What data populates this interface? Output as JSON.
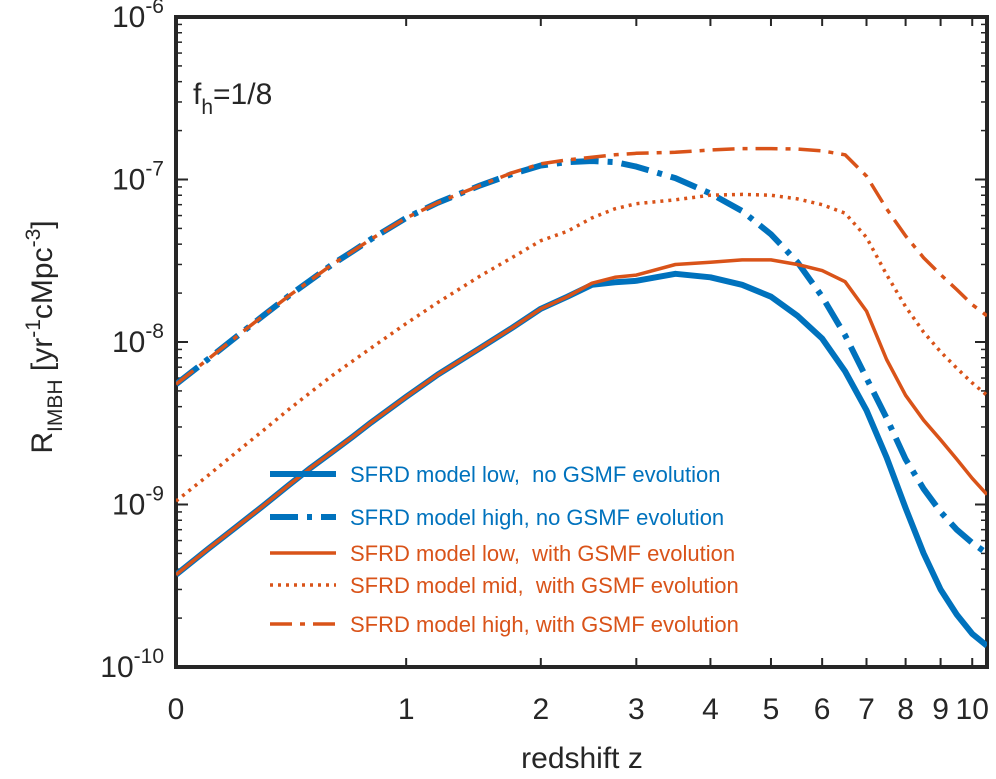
{
  "chart_data": {
    "type": "line",
    "title": "",
    "xlabel": "redshift z",
    "ylabel": "R_IMBH [yr^-1 cMpc^-3]",
    "xscale": "log(1+z)",
    "yscale": "log",
    "xlim": [
      0,
      10.5
    ],
    "ylim": [
      1e-10,
      1e-06
    ],
    "grid": false,
    "legend_position": "bottom-right",
    "annotation": {
      "base": "f",
      "sub": "h",
      "rest": "=1/8"
    },
    "ylabel_parts": {
      "base": "R",
      "sub": "IMBH",
      "open": " [yr",
      "exp1": "-1",
      "mid": "cMpc",
      "exp2": "-3",
      "close": "]"
    },
    "x_ticks": [
      {
        "value": 0,
        "label": "0"
      },
      {
        "value": 1,
        "label": "1"
      },
      {
        "value": 2,
        "label": "2"
      },
      {
        "value": 3,
        "label": "3"
      },
      {
        "value": 4,
        "label": "4"
      },
      {
        "value": 5,
        "label": "5"
      },
      {
        "value": 6,
        "label": "6"
      },
      {
        "value": 7,
        "label": "7"
      },
      {
        "value": 8,
        "label": "8"
      },
      {
        "value": 9,
        "label": "9"
      },
      {
        "value": 10,
        "label": "10"
      }
    ],
    "y_ticks": [
      {
        "value": 1e-10,
        "base": "10",
        "exp": "-10"
      },
      {
        "value": 1e-09,
        "base": "10",
        "exp": "-9"
      },
      {
        "value": 1e-08,
        "base": "10",
        "exp": "-8"
      },
      {
        "value": 1e-07,
        "base": "10",
        "exp": "-7"
      },
      {
        "value": 1e-06,
        "base": "10",
        "exp": "-6"
      }
    ],
    "series": [
      {
        "name": "SFRD model low,  no GSMF evolution",
        "color": "#0072BD",
        "style": "solid-thick",
        "x": [
          0,
          0.1,
          0.2,
          0.3,
          0.4,
          0.5,
          0.6,
          0.7,
          0.8,
          1.0,
          1.2,
          1.5,
          1.75,
          2.0,
          2.25,
          2.5,
          2.75,
          3.0,
          3.5,
          4.0,
          4.5,
          5.0,
          5.5,
          6.0,
          6.5,
          7.0,
          7.5,
          8.0,
          8.5,
          9.0,
          9.5,
          10.0,
          10.5
        ],
        "y": [
          3.7e-10,
          5.3e-10,
          7.3e-10,
          9.8e-10,
          1.3e-09,
          1.68e-09,
          2.1e-09,
          2.6e-09,
          3.2e-09,
          4.6e-09,
          6.3e-09,
          9.2e-09,
          1.22e-08,
          1.6e-08,
          1.9e-08,
          2.25e-08,
          2.33e-08,
          2.38e-08,
          2.63e-08,
          2.5e-08,
          2.25e-08,
          1.9e-08,
          1.45e-08,
          1.05e-08,
          6.6e-09,
          3.8e-09,
          1.95e-09,
          9.5e-10,
          5e-10,
          3e-10,
          2.1e-10,
          1.6e-10,
          1.35e-10
        ]
      },
      {
        "name": "SFRD model high, no GSMF evolution",
        "color": "#0072BD",
        "style": "dashdot-thick",
        "x": [
          0,
          0.1,
          0.2,
          0.3,
          0.4,
          0.5,
          0.6,
          0.7,
          0.8,
          1.0,
          1.2,
          1.5,
          1.75,
          2.0,
          2.25,
          2.5,
          2.75,
          3.0,
          3.5,
          4.0,
          4.5,
          5.0,
          5.5,
          6.0,
          6.5,
          7.0,
          7.5,
          8.0,
          8.5,
          9.0,
          9.5,
          10.0,
          10.5
        ],
        "y": [
          5.5e-09,
          7.8e-09,
          1.08e-08,
          1.45e-08,
          1.9e-08,
          2.4e-08,
          3e-08,
          3.6e-08,
          4.3e-08,
          5.8e-08,
          7.2e-08,
          9.2e-08,
          1.08e-07,
          1.22e-07,
          1.28e-07,
          1.3e-07,
          1.28e-07,
          1.2e-07,
          1.02e-07,
          8.2e-08,
          6.4e-08,
          4.6e-08,
          3.1e-08,
          1.9e-08,
          1.1e-08,
          6e-09,
          3.4e-09,
          1.9e-09,
          1.25e-09,
          9e-10,
          7e-10,
          5.8e-10,
          5e-10
        ]
      },
      {
        "name": "SFRD model low,  with GSMF evolution",
        "color": "#D95319",
        "style": "solid",
        "x": [
          0,
          0.1,
          0.2,
          0.3,
          0.4,
          0.5,
          0.6,
          0.7,
          0.8,
          1.0,
          1.2,
          1.5,
          1.75,
          2.0,
          2.25,
          2.5,
          2.75,
          3.0,
          3.5,
          4.0,
          4.5,
          5.0,
          5.5,
          6.0,
          6.5,
          7.0,
          7.5,
          8.0,
          8.5,
          9.0,
          9.5,
          10.0,
          10.5
        ],
        "y": [
          3.7e-10,
          5.3e-10,
          7.3e-10,
          9.8e-10,
          1.3e-09,
          1.68e-09,
          2.1e-09,
          2.6e-09,
          3.2e-09,
          4.6e-09,
          6.3e-09,
          9.2e-09,
          1.22e-08,
          1.6e-08,
          1.9e-08,
          2.3e-08,
          2.5e-08,
          2.58e-08,
          3e-08,
          3.1e-08,
          3.2e-08,
          3.2e-08,
          3e-08,
          2.75e-08,
          2.35e-08,
          1.55e-08,
          7.8e-09,
          4.7e-09,
          3.3e-09,
          2.5e-09,
          1.9e-09,
          1.45e-09,
          1.15e-09
        ]
      },
      {
        "name": "SFRD model mid,  with GSMF evolution",
        "color": "#D95319",
        "style": "dotted",
        "x": [
          0,
          0.1,
          0.2,
          0.3,
          0.4,
          0.5,
          0.6,
          0.7,
          0.8,
          1.0,
          1.2,
          1.5,
          1.75,
          2.0,
          2.25,
          2.5,
          2.75,
          3.0,
          3.5,
          4.0,
          4.5,
          5.0,
          5.5,
          6.0,
          6.5,
          7.0,
          7.5,
          8.0,
          8.5,
          9.0,
          9.5,
          10.0,
          10.5
        ],
        "y": [
          1.05e-09,
          1.5e-09,
          2.1e-09,
          2.85e-09,
          3.8e-09,
          4.9e-09,
          6.2e-09,
          7.6e-09,
          9.2e-09,
          1.3e-08,
          1.75e-08,
          2.55e-08,
          3.3e-08,
          4.2e-08,
          4.8e-08,
          5.8e-08,
          6.6e-08,
          7.1e-08,
          7.5e-08,
          8e-08,
          8.1e-08,
          8e-08,
          7.6e-08,
          7e-08,
          6.2e-08,
          4.4e-08,
          2.6e-08,
          1.65e-08,
          1.15e-08,
          8.7e-09,
          6.9e-09,
          5.6e-09,
          4.7e-09
        ]
      },
      {
        "name": "SFRD model high, with GSMF evolution",
        "color": "#D95319",
        "style": "dashdot",
        "x": [
          0,
          0.1,
          0.2,
          0.3,
          0.4,
          0.5,
          0.6,
          0.7,
          0.8,
          1.0,
          1.2,
          1.5,
          1.75,
          2.0,
          2.25,
          2.5,
          2.75,
          3.0,
          3.5,
          4.0,
          4.5,
          5.0,
          5.5,
          6.0,
          6.5,
          7.0,
          7.5,
          8.0,
          8.5,
          9.0,
          9.5,
          10.0,
          10.5
        ],
        "y": [
          5.5e-09,
          7.8e-09,
          1.08e-08,
          1.45e-08,
          1.9e-08,
          2.4e-08,
          3e-08,
          3.6e-08,
          4.3e-08,
          5.8e-08,
          7.2e-08,
          9.2e-08,
          1.1e-07,
          1.25e-07,
          1.32e-07,
          1.37e-07,
          1.42e-07,
          1.45e-07,
          1.47e-07,
          1.52e-07,
          1.55e-07,
          1.55e-07,
          1.54e-07,
          1.5e-07,
          1.42e-07,
          1.05e-07,
          6.6e-08,
          4.5e-08,
          3.3e-08,
          2.6e-08,
          2.1e-08,
          1.7e-08,
          1.45e-08
        ]
      }
    ]
  }
}
